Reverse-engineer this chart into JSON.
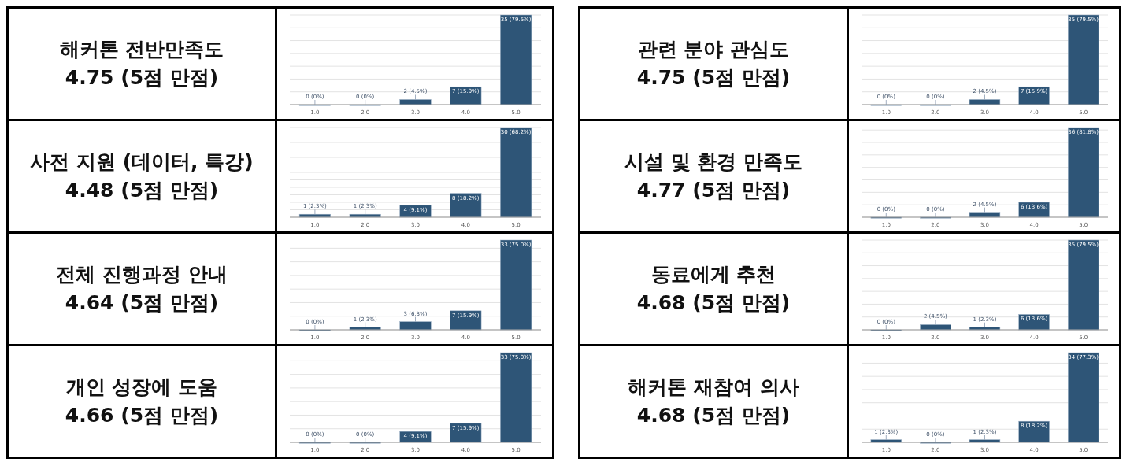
{
  "chart_data": [
    {
      "type": "bar",
      "title": "해커톤 전반만족도",
      "subtitle": "4.75 (5점 만점)",
      "categories": [
        "1.0",
        "2.0",
        "3.0",
        "4.0",
        "5.0"
      ],
      "values": [
        0,
        0,
        2,
        7,
        35
      ],
      "value_labels": [
        "0 (0%)",
        "0 (0%)",
        "2 (4.5%)",
        "7 (15.9%)",
        "35 (79.5%)"
      ],
      "color": "#2e5577",
      "ylim": [
        0,
        35
      ],
      "yticks": [
        {
          "value": 0,
          "label": null
        },
        {
          "value": 5,
          "label": null
        },
        {
          "value": 10,
          "label": null
        },
        {
          "value": 15,
          "label": null
        },
        {
          "value": 20,
          "label": null
        },
        {
          "value": 25,
          "label": null
        },
        {
          "value": 30,
          "label": null
        },
        {
          "value": 35,
          "label": null
        }
      ],
      "grid": "y",
      "tick_labels": "x"
    },
    {
      "type": "bar",
      "title": "사전 지원 (데이터, 특강)",
      "subtitle": "4.48 (5점 만점)",
      "categories": [
        "1.0",
        "2.0",
        "3.0",
        "4.0",
        "5.0"
      ],
      "values": [
        1,
        1,
        4,
        8,
        30
      ],
      "value_labels": [
        "1 (2.3%)",
        "1 (2.3%)",
        "4 (9.1%)",
        "8 (18.2%)",
        "30 (68.2%)"
      ],
      "color": "#2e5577",
      "ylim": [
        0,
        30
      ],
      "yticks": [
        {
          "value": 0,
          "label": null
        },
        {
          "value": 2.5,
          "label": null
        },
        {
          "value": 5,
          "label": null
        },
        {
          "value": 7.5,
          "label": null
        },
        {
          "value": 10,
          "label": null
        },
        {
          "value": 12.5,
          "label": null
        },
        {
          "value": 15,
          "label": null
        },
        {
          "value": 17.5,
          "label": null
        },
        {
          "value": 20,
          "label": null
        },
        {
          "value": 22.5,
          "label": null
        },
        {
          "value": 25,
          "label": null
        },
        {
          "value": 27.5,
          "label": null
        },
        {
          "value": 30,
          "label": null
        }
      ],
      "grid": "y",
      "tick_labels": "x"
    },
    {
      "type": "bar",
      "title": "전체 진행과정 안내",
      "subtitle": "4.64 (5점 만점)",
      "categories": [
        "1.0",
        "2.0",
        "3.0",
        "4.0",
        "5.0"
      ],
      "values": [
        0,
        1,
        3,
        7,
        33
      ],
      "value_labels": [
        "0 (0%)",
        "1 (2.3%)",
        "3 (6.8%)",
        "7 (15.9%)",
        "33 (75.0%)"
      ],
      "color": "#2e5577",
      "ylim": [
        0,
        33
      ],
      "yticks": [
        {
          "value": 0,
          "label": null
        },
        {
          "value": 5,
          "label": null
        },
        {
          "value": 10,
          "label": null
        },
        {
          "value": 15,
          "label": null
        },
        {
          "value": 20,
          "label": null
        },
        {
          "value": 25,
          "label": null
        },
        {
          "value": 30,
          "label": null
        }
      ],
      "grid": "y",
      "tick_labels": "x"
    },
    {
      "type": "bar",
      "title": "개인 성장에 도움",
      "subtitle": "4.66 (5점 만점)",
      "categories": [
        "1.0",
        "2.0",
        "3.0",
        "4.0",
        "5.0"
      ],
      "values": [
        0,
        0,
        4,
        7,
        33
      ],
      "value_labels": [
        "0 (0%)",
        "0 (0%)",
        "4 (9.1%)",
        "7 (15.9%)",
        "33 (75.0%)"
      ],
      "color": "#2e5577",
      "ylim": [
        0,
        33
      ],
      "yticks": [
        {
          "value": 0,
          "label": null
        },
        {
          "value": 5,
          "label": null
        },
        {
          "value": 10,
          "label": null
        },
        {
          "value": 15,
          "label": null
        },
        {
          "value": 20,
          "label": null
        },
        {
          "value": 25,
          "label": null
        },
        {
          "value": 30,
          "label": null
        }
      ],
      "grid": "y",
      "tick_labels": "x"
    },
    {
      "type": "bar",
      "title": "관련 분야 관심도",
      "subtitle": "4.75 (5점 만점)",
      "categories": [
        "1.0",
        "2.0",
        "3.0",
        "4.0",
        "5.0"
      ],
      "values": [
        0,
        0,
        2,
        7,
        35
      ],
      "value_labels": [
        "0 (0%)",
        "0 (0%)",
        "2 (4.5%)",
        "7 (15.9%)",
        "35 (79.5%)"
      ],
      "color": "#2e5577",
      "ylim": [
        0,
        35
      ],
      "yticks": [
        {
          "value": 0,
          "label": null
        },
        {
          "value": 5,
          "label": null
        },
        {
          "value": 10,
          "label": null
        },
        {
          "value": 15,
          "label": null
        },
        {
          "value": 20,
          "label": null
        },
        {
          "value": 25,
          "label": null
        },
        {
          "value": 30,
          "label": null
        },
        {
          "value": 35,
          "label": null
        }
      ],
      "grid": "y",
      "tick_labels": "x"
    },
    {
      "type": "bar",
      "title": "시설 및 환경 만족도",
      "subtitle": "4.77 (5점 만점)",
      "categories": [
        "1.0",
        "2.0",
        "3.0",
        "4.0",
        "5.0"
      ],
      "values": [
        0,
        0,
        2,
        6,
        36
      ],
      "value_labels": [
        "0 (0%)",
        "0 (0%)",
        "2 (4.5%)",
        "6 (13.6%)",
        "36 (81.8%)"
      ],
      "color": "#2e5577",
      "ylim": [
        0,
        36
      ],
      "yticks": [
        {
          "value": 0,
          "label": null
        },
        {
          "value": 5,
          "label": null
        },
        {
          "value": 10,
          "label": null
        },
        {
          "value": 15,
          "label": null
        },
        {
          "value": 20,
          "label": null
        },
        {
          "value": 25,
          "label": null
        },
        {
          "value": 30,
          "label": null
        },
        {
          "value": 35,
          "label": null
        }
      ],
      "grid": "y",
      "tick_labels": "x"
    },
    {
      "type": "bar",
      "title": "동료에게 추천",
      "subtitle": "4.68 (5점 만점)",
      "categories": [
        "1.0",
        "2.0",
        "3.0",
        "4.0",
        "5.0"
      ],
      "values": [
        0,
        2,
        1,
        6,
        35
      ],
      "value_labels": [
        "0 (0%)",
        "2 (4.5%)",
        "1 (2.3%)",
        "6 (13.6%)",
        "35 (79.5%)"
      ],
      "color": "#2e5577",
      "ylim": [
        0,
        35
      ],
      "yticks": [
        {
          "value": 0,
          "label": null
        },
        {
          "value": 5,
          "label": null
        },
        {
          "value": 10,
          "label": null
        },
        {
          "value": 15,
          "label": null
        },
        {
          "value": 20,
          "label": null
        },
        {
          "value": 25,
          "label": null
        },
        {
          "value": 30,
          "label": null
        },
        {
          "value": 35,
          "label": null
        }
      ],
      "grid": "y",
      "tick_labels": "x"
    },
    {
      "type": "bar",
      "title": "해커톤 재참여 의사",
      "subtitle": "4.68 (5점 만점)",
      "categories": [
        "1.0",
        "2.0",
        "3.0",
        "4.0",
        "5.0"
      ],
      "values": [
        1,
        0,
        1,
        8,
        34
      ],
      "value_labels": [
        "1 (2.3%)",
        "0 (0%)",
        "1 (2.3%)",
        "8 (18.2%)",
        "34 (77.3%)"
      ],
      "color": "#2e5577",
      "ylim": [
        0,
        34
      ],
      "yticks": [
        {
          "value": 0,
          "label": null
        },
        {
          "value": 5,
          "label": null
        },
        {
          "value": 10,
          "label": null
        },
        {
          "value": 15,
          "label": null
        },
        {
          "value": 20,
          "label": null
        },
        {
          "value": 25,
          "label": null
        },
        {
          "value": 30,
          "label": null
        }
      ],
      "grid": "y",
      "tick_labels": "x"
    }
  ]
}
